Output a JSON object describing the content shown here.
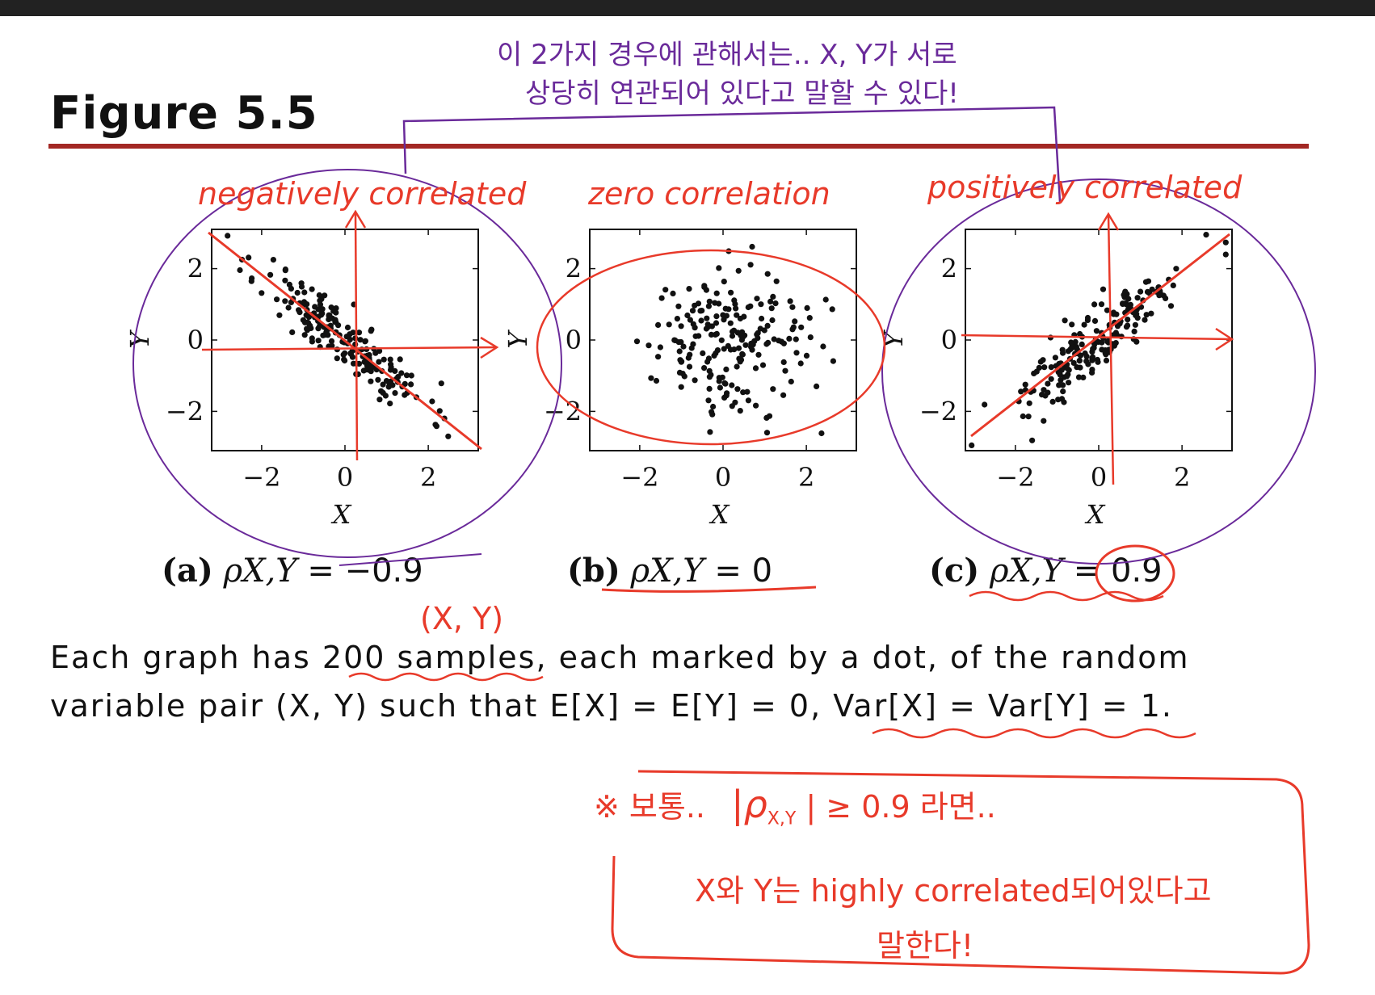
{
  "figure_title": "Figure 5.5",
  "chart_data": [
    {
      "type": "scatter",
      "panel": "(a)",
      "caption_symbol": "ρX,Y",
      "caption_value": "= −0.9",
      "correlation": -0.9,
      "n_samples": 200,
      "xlabel": "X",
      "ylabel": "Y",
      "xlim": [
        -3.2,
        3.2
      ],
      "ylim": [
        -3.1,
        3.1
      ],
      "xticks": [
        "−2",
        "0",
        "2"
      ],
      "yticks": [
        "−2",
        "0",
        "2"
      ],
      "tick_values": [
        -2,
        0,
        2
      ],
      "seed": 11
    },
    {
      "type": "scatter",
      "panel": "(b)",
      "caption_symbol": "ρX,Y",
      "caption_value": "= 0",
      "correlation": 0,
      "n_samples": 200,
      "xlabel": "X",
      "ylabel": "Y",
      "xlim": [
        -3.2,
        3.2
      ],
      "ylim": [
        -3.1,
        3.1
      ],
      "xticks": [
        "−2",
        "0",
        "2"
      ],
      "yticks": [
        "−2",
        "0",
        "2"
      ],
      "tick_values": [
        -2,
        0,
        2
      ],
      "seed": 29
    },
    {
      "type": "scatter",
      "panel": "(c)",
      "caption_symbol": "ρX,Y",
      "caption_value": "= 0.9",
      "correlation": 0.9,
      "n_samples": 200,
      "xlabel": "X",
      "ylabel": "Y",
      "xlim": [
        -3.2,
        3.2
      ],
      "ylim": [
        -3.1,
        3.1
      ],
      "xticks": [
        "−2",
        "0",
        "2"
      ],
      "yticks": [
        "−2",
        "0",
        "2"
      ],
      "tick_values": [
        -2,
        0,
        2
      ],
      "seed": 47
    }
  ],
  "description": {
    "line1": "Each graph has 200 samples, each marked by a dot, of the random",
    "line2": "variable pair (X, Y) such that E[X] = E[Y] = 0, Var[X] = Var[Y] = 1."
  },
  "annotations": {
    "top_korean_line1": "이 2가지 경우에 관해서는.. X, Y가 서로",
    "top_korean_line2": "상당히 연관되어 있다고 말할 수 있다!",
    "negatively": "negatively correlated",
    "zero": "zero correlation",
    "positively": "positively correlated",
    "xy_pair": "(X, Y)",
    "note_line1_a": "※ 보통..",
    "note_rho": "|ρ",
    "note_sub": "X,Y",
    "note_line1_b": "| ≥ 0.9 라면..",
    "note_line2": "X와 Y는 highly correlated되어있다고",
    "note_line3": "말한다!"
  },
  "colors": {
    "title_rule": "#a32824",
    "ink_red": "#e83a2a",
    "ink_purple": "#6a2a9a",
    "dots": "#111111"
  }
}
